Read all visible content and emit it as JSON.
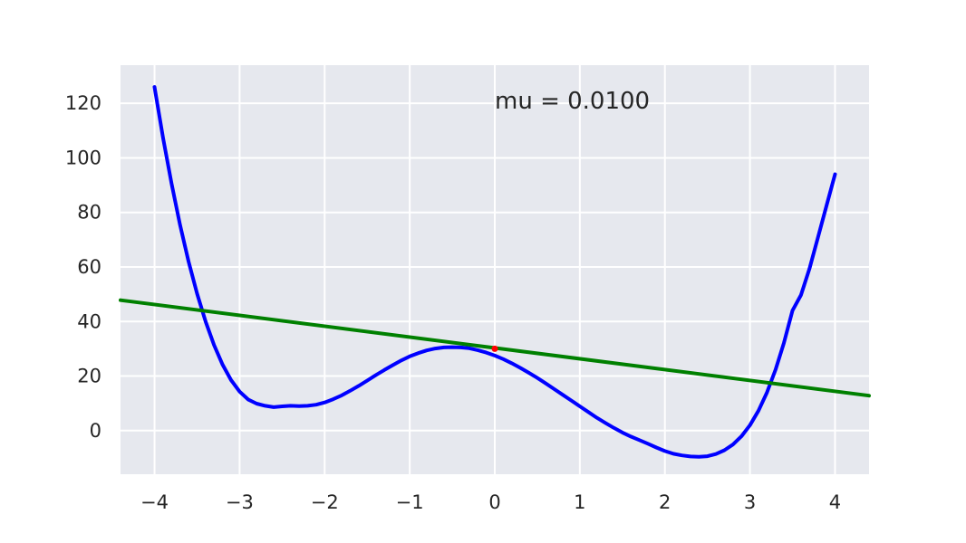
{
  "chart_data": {
    "type": "line",
    "title": "",
    "xlabel": "",
    "ylabel": "",
    "xlim": [
      -4.4,
      4.4
    ],
    "ylim": [
      -16,
      134
    ],
    "x_ticks": [
      -4,
      -3,
      -2,
      -1,
      0,
      1,
      2,
      3,
      4
    ],
    "x_tick_labels": [
      "−4",
      "−3",
      "−2",
      "−1",
      "0",
      "1",
      "2",
      "3",
      "4"
    ],
    "y_ticks": [
      0,
      20,
      40,
      60,
      80,
      100,
      120
    ],
    "y_tick_labels": [
      "0",
      "20",
      "40",
      "60",
      "80",
      "100",
      "120"
    ],
    "grid": true,
    "background_color": "#e6e8ee",
    "grid_color": "#ffffff",
    "annotation": {
      "text": "mu = 0.0100",
      "x": 0,
      "y": 120
    },
    "series": [
      {
        "color": "#0000ff",
        "x": [
          -4.0,
          -3.9,
          -3.8,
          -3.7,
          -3.6,
          -3.5,
          -3.4,
          -3.3,
          -3.2,
          -3.1,
          -3.0,
          -2.9,
          -2.8,
          -2.7,
          -2.6,
          -2.5,
          -2.4,
          -2.3,
          -2.2,
          -2.1,
          -2.0,
          -1.9,
          -1.8,
          -1.7,
          -1.6,
          -1.5,
          -1.4,
          -1.3,
          -1.2,
          -1.1,
          -1.0,
          -0.9,
          -0.8,
          -0.7,
          -0.6,
          -0.5,
          -0.4,
          -0.3,
          -0.2,
          -0.1,
          0.0,
          0.1,
          0.2,
          0.3,
          0.4,
          0.5,
          0.6,
          0.7,
          0.8,
          0.9,
          1.0,
          1.1,
          1.2,
          1.3,
          1.4,
          1.5,
          1.6,
          1.7,
          1.8,
          1.9,
          2.0,
          2.1,
          2.2,
          2.3,
          2.4,
          2.5,
          2.6,
          2.7,
          2.8,
          2.9,
          3.0,
          3.1,
          3.2,
          3.3,
          3.4,
          3.5,
          3.6,
          3.7,
          3.8,
          3.9,
          4.0
        ],
        "y": [
          126.0,
          107.4,
          90.6,
          75.4,
          62.0,
          50.2,
          40.0,
          31.3,
          24.2,
          18.5,
          14.3,
          11.4,
          9.9,
          9.1,
          8.6,
          8.9,
          9.1,
          9.0,
          9.1,
          9.5,
          10.3,
          11.5,
          12.9,
          14.6,
          16.4,
          18.3,
          20.3,
          22.2,
          24.0,
          25.7,
          27.2,
          28.4,
          29.4,
          30.1,
          30.5,
          30.6,
          30.5,
          30.2,
          29.5,
          28.6,
          27.5,
          26.2,
          24.7,
          23.0,
          21.2,
          19.3,
          17.3,
          15.2,
          13.1,
          11.0,
          8.9,
          6.8,
          4.7,
          2.8,
          1.0,
          -0.7,
          -2.2,
          -3.5,
          -4.8,
          -6.2,
          -7.5,
          -8.5,
          -9.1,
          -9.5,
          -9.6,
          -9.4,
          -8.6,
          -7.2,
          -5.1,
          -2.1,
          2.0,
          7.3,
          14.0,
          22.3,
          32.2,
          44.0,
          49.7,
          59.4,
          70.9,
          82.5,
          94.0
        ]
      },
      {
        "color": "#008000",
        "x": [
          -4.4,
          4.4
        ],
        "y": [
          47.8,
          12.8
        ]
      }
    ],
    "points": [
      {
        "color": "#ff0000",
        "x": 0,
        "y": 30
      }
    ]
  }
}
